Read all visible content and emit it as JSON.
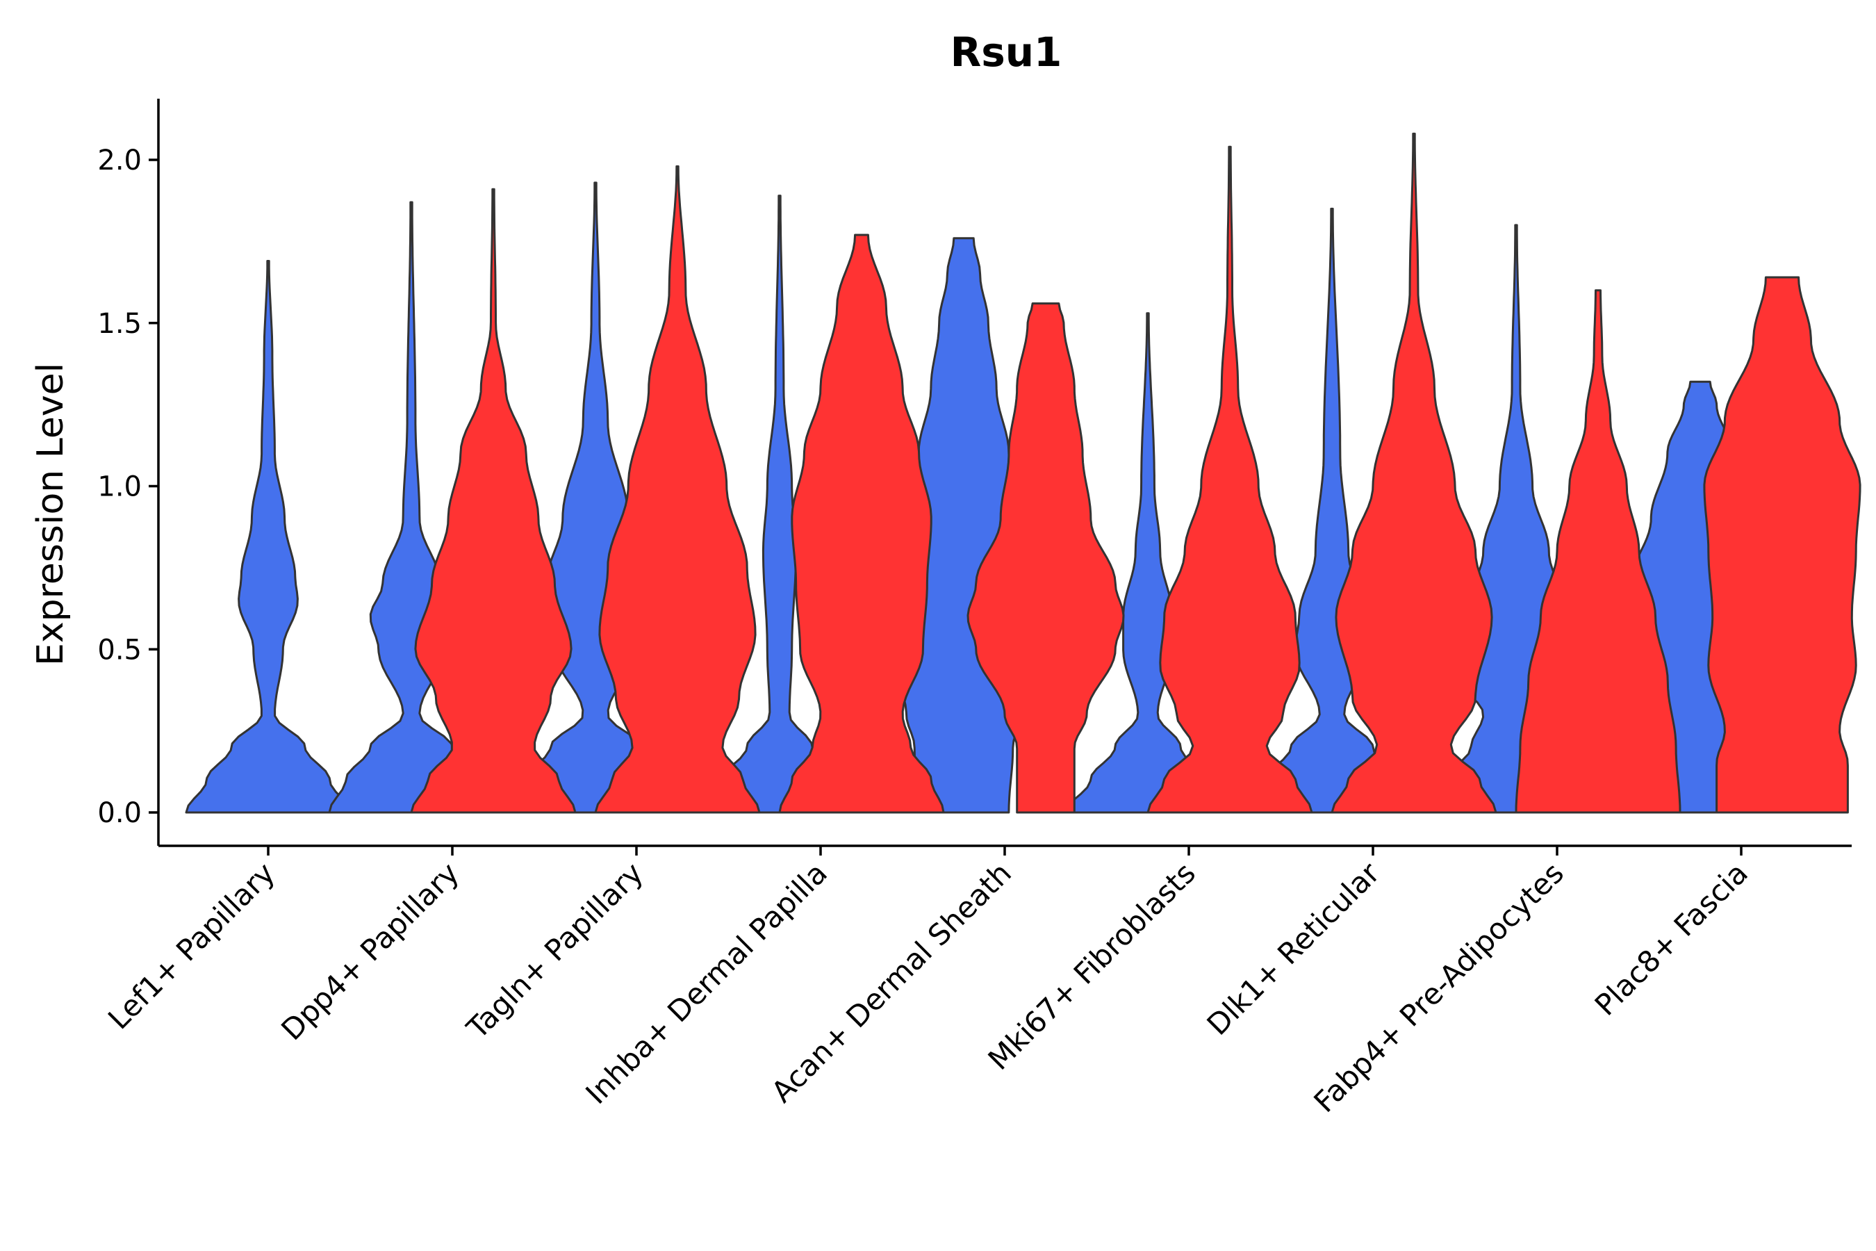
{
  "chart_data": {
    "type": "violin",
    "title": "Rsu1",
    "xlabel": "",
    "ylabel": "Expression Level",
    "ylim": [
      -0.1,
      2.2
    ],
    "yticks": [
      "0.0",
      "0.5",
      "1.0",
      "1.5",
      "2.0"
    ],
    "ytick_values": [
      0,
      0.5,
      1.0,
      1.5,
      2.0
    ],
    "categories": [
      "Lef1+ Papillary",
      "Dpp4+ Papillary",
      "Tagln+ Papillary",
      "Inhba+ Dermal Papilla",
      "Acan+ Dermal Sheath",
      "Mki67+ Fibroblasts",
      "Dlk1+ Reticular",
      "Fabp4+ Pre-Adipocytes",
      "Plac8+ Fascia"
    ],
    "series": [
      {
        "color": "#4571ED",
        "max": [
          1.69,
          1.87,
          1.93,
          1.89,
          1.76,
          1.53,
          1.85,
          1.8,
          1.32
        ],
        "profiles": [
          [
            [
              0,
              1.0
            ],
            [
              0.1,
              0.75
            ],
            [
              0.2,
              0.45
            ],
            [
              0.3,
              0.08
            ],
            [
              0.5,
              0.18
            ],
            [
              0.65,
              0.36
            ],
            [
              0.72,
              0.33
            ],
            [
              0.9,
              0.2
            ],
            [
              1.1,
              0.08
            ],
            [
              1.4,
              0.05
            ],
            [
              1.69,
              0.01
            ]
          ],
          [
            [
              0,
              1.0
            ],
            [
              0.1,
              0.8
            ],
            [
              0.2,
              0.5
            ],
            [
              0.3,
              0.1
            ],
            [
              0.5,
              0.4
            ],
            [
              0.6,
              0.5
            ],
            [
              0.7,
              0.35
            ],
            [
              0.9,
              0.1
            ],
            [
              1.2,
              0.05
            ],
            [
              1.87,
              0.01
            ]
          ],
          [
            [
              0,
              1.0
            ],
            [
              0.1,
              0.85
            ],
            [
              0.2,
              0.55
            ],
            [
              0.3,
              0.15
            ],
            [
              0.5,
              0.5
            ],
            [
              0.7,
              0.6
            ],
            [
              0.9,
              0.4
            ],
            [
              1.2,
              0.15
            ],
            [
              1.5,
              0.05
            ],
            [
              1.93,
              0.01
            ]
          ],
          [
            [
              0,
              1.0
            ],
            [
              0.1,
              0.7
            ],
            [
              0.2,
              0.4
            ],
            [
              0.3,
              0.12
            ],
            [
              0.5,
              0.15
            ],
            [
              0.8,
              0.2
            ],
            [
              1.0,
              0.15
            ],
            [
              1.3,
              0.05
            ],
            [
              1.89,
              0.01
            ]
          ],
          [
            [
              0,
              0.55
            ],
            [
              0.2,
              0.6
            ],
            [
              0.3,
              0.7
            ],
            [
              0.5,
              0.9
            ],
            [
              0.6,
              1.0
            ],
            [
              0.7,
              0.95
            ],
            [
              0.9,
              0.8
            ],
            [
              1.1,
              0.55
            ],
            [
              1.3,
              0.4
            ],
            [
              1.5,
              0.3
            ],
            [
              1.65,
              0.2
            ],
            [
              1.76,
              0.12
            ]
          ],
          [
            [
              0,
              1.0
            ],
            [
              0.1,
              0.7
            ],
            [
              0.2,
              0.4
            ],
            [
              0.3,
              0.12
            ],
            [
              0.5,
              0.3
            ],
            [
              0.6,
              0.3
            ],
            [
              0.8,
              0.15
            ],
            [
              1.0,
              0.08
            ],
            [
              1.53,
              0.01
            ]
          ],
          [
            [
              0,
              1.0
            ],
            [
              0.1,
              0.8
            ],
            [
              0.2,
              0.5
            ],
            [
              0.3,
              0.15
            ],
            [
              0.5,
              0.45
            ],
            [
              0.6,
              0.4
            ],
            [
              0.8,
              0.2
            ],
            [
              1.1,
              0.1
            ],
            [
              1.85,
              0.01
            ]
          ],
          [
            [
              0,
              1.0
            ],
            [
              0.1,
              0.85
            ],
            [
              0.2,
              0.55
            ],
            [
              0.3,
              0.4
            ],
            [
              0.45,
              0.9
            ],
            [
              0.6,
              0.65
            ],
            [
              0.8,
              0.4
            ],
            [
              1.0,
              0.2
            ],
            [
              1.3,
              0.05
            ],
            [
              1.8,
              0.01
            ]
          ],
          [
            [
              0,
              0.55
            ],
            [
              0.15,
              0.65
            ],
            [
              0.25,
              0.55
            ],
            [
              0.4,
              0.8
            ],
            [
              0.55,
              1.0
            ],
            [
              0.7,
              0.85
            ],
            [
              0.9,
              0.6
            ],
            [
              1.1,
              0.4
            ],
            [
              1.25,
              0.2
            ],
            [
              1.32,
              0.12
            ]
          ]
        ]
      },
      {
        "color": "#FF3333",
        "max": [
          null,
          1.91,
          1.98,
          1.77,
          1.56,
          2.04,
          2.08,
          1.6,
          1.64
        ],
        "profiles": [
          null,
          [
            [
              0,
              1.0
            ],
            [
              0.1,
              0.8
            ],
            [
              0.2,
              0.5
            ],
            [
              0.35,
              0.7
            ],
            [
              0.5,
              0.95
            ],
            [
              0.7,
              0.75
            ],
            [
              0.9,
              0.55
            ],
            [
              1.1,
              0.4
            ],
            [
              1.3,
              0.15
            ],
            [
              1.5,
              0.03
            ],
            [
              1.91,
              0.01
            ]
          ],
          [
            [
              0,
              1.0
            ],
            [
              0.1,
              0.8
            ],
            [
              0.2,
              0.55
            ],
            [
              0.35,
              0.75
            ],
            [
              0.55,
              0.95
            ],
            [
              0.75,
              0.85
            ],
            [
              1.0,
              0.6
            ],
            [
              1.3,
              0.35
            ],
            [
              1.6,
              0.1
            ],
            [
              1.98,
              0.01
            ]
          ],
          [
            [
              0,
              1.0
            ],
            [
              0.1,
              0.85
            ],
            [
              0.2,
              0.6
            ],
            [
              0.3,
              0.5
            ],
            [
              0.5,
              0.75
            ],
            [
              0.7,
              0.8
            ],
            [
              0.9,
              0.85
            ],
            [
              1.1,
              0.7
            ],
            [
              1.3,
              0.5
            ],
            [
              1.55,
              0.3
            ],
            [
              1.77,
              0.08
            ]
          ],
          [
            [
              0,
              0.35
            ],
            [
              0.2,
              0.35
            ],
            [
              0.3,
              0.5
            ],
            [
              0.5,
              0.85
            ],
            [
              0.6,
              0.95
            ],
            [
              0.7,
              0.85
            ],
            [
              0.9,
              0.55
            ],
            [
              1.1,
              0.45
            ],
            [
              1.3,
              0.35
            ],
            [
              1.5,
              0.22
            ],
            [
              1.56,
              0.16
            ]
          ],
          [
            [
              0,
              1.0
            ],
            [
              0.1,
              0.8
            ],
            [
              0.2,
              0.45
            ],
            [
              0.3,
              0.65
            ],
            [
              0.45,
              0.85
            ],
            [
              0.6,
              0.8
            ],
            [
              0.8,
              0.55
            ],
            [
              1.0,
              0.35
            ],
            [
              1.3,
              0.1
            ],
            [
              1.6,
              0.03
            ],
            [
              2.04,
              0.01
            ]
          ],
          [
            [
              0,
              1.0
            ],
            [
              0.1,
              0.8
            ],
            [
              0.2,
              0.45
            ],
            [
              0.35,
              0.75
            ],
            [
              0.6,
              0.95
            ],
            [
              0.8,
              0.75
            ],
            [
              1.0,
              0.5
            ],
            [
              1.3,
              0.25
            ],
            [
              1.6,
              0.05
            ],
            [
              2.08,
              0.01
            ]
          ],
          [
            [
              0,
              1.0
            ],
            [
              0.2,
              0.95
            ],
            [
              0.4,
              0.85
            ],
            [
              0.6,
              0.7
            ],
            [
              0.8,
              0.5
            ],
            [
              1.0,
              0.35
            ],
            [
              1.2,
              0.15
            ],
            [
              1.4,
              0.05
            ],
            [
              1.6,
              0.03
            ]
          ],
          [
            [
              0,
              0.8
            ],
            [
              0.15,
              0.8
            ],
            [
              0.25,
              0.7
            ],
            [
              0.45,
              0.9
            ],
            [
              0.6,
              0.85
            ],
            [
              0.8,
              0.9
            ],
            [
              1.0,
              0.95
            ],
            [
              1.2,
              0.7
            ],
            [
              1.45,
              0.35
            ],
            [
              1.64,
              0.2
            ]
          ]
        ]
      }
    ],
    "grid": false,
    "legend": "none"
  }
}
